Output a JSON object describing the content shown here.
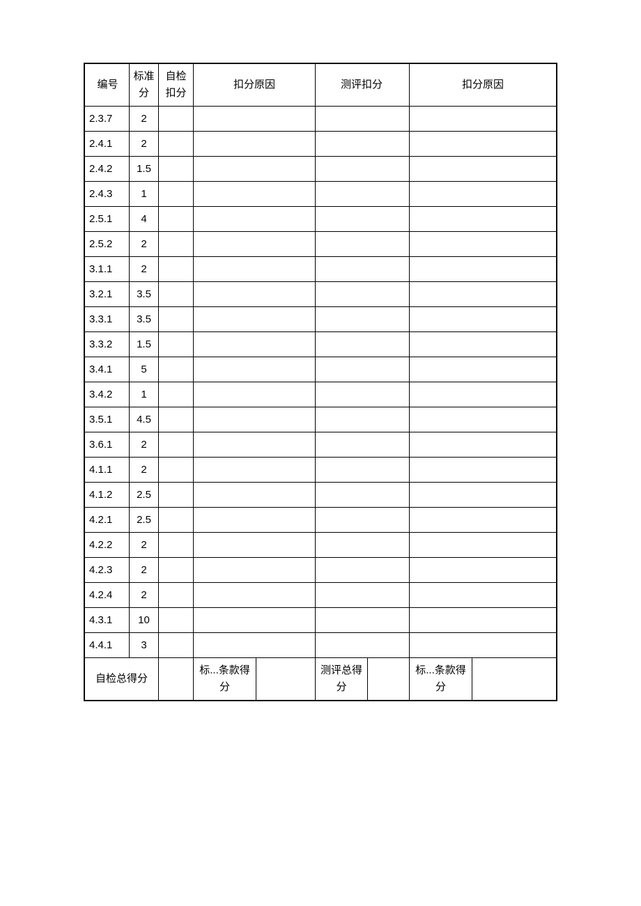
{
  "table": {
    "border_color": "#000000",
    "background_color": "#ffffff",
    "text_color": "#000000",
    "font_size": 15,
    "headers": {
      "col1": "编号",
      "col2": "标准分",
      "col3": "自检扣分",
      "col4": "扣分原因",
      "col5": "测评扣分",
      "col6": "扣分原因"
    },
    "column_widths_approx": [
      64,
      42,
      50,
      175,
      50,
      290
    ],
    "rows": [
      {
        "id": "2.3.7",
        "std": "2",
        "self_ded": "",
        "reason1": "",
        "eval_ded": "",
        "reason2": ""
      },
      {
        "id": "2.4.1",
        "std": "2",
        "self_ded": "",
        "reason1": "",
        "eval_ded": "",
        "reason2": ""
      },
      {
        "id": "2.4.2",
        "std": "1.5",
        "self_ded": "",
        "reason1": "",
        "eval_ded": "",
        "reason2": ""
      },
      {
        "id": "2.4.3",
        "std": "1",
        "self_ded": "",
        "reason1": "",
        "eval_ded": "",
        "reason2": ""
      },
      {
        "id": "2.5.1",
        "std": "4",
        "self_ded": "",
        "reason1": "",
        "eval_ded": "",
        "reason2": ""
      },
      {
        "id": "2.5.2",
        "std": "2",
        "self_ded": "",
        "reason1": "",
        "eval_ded": "",
        "reason2": ""
      },
      {
        "id": "3.1.1",
        "std": "2",
        "self_ded": "",
        "reason1": "",
        "eval_ded": "",
        "reason2": ""
      },
      {
        "id": "3.2.1",
        "std": "3.5",
        "self_ded": "",
        "reason1": "",
        "eval_ded": "",
        "reason2": ""
      },
      {
        "id": "3.3.1",
        "std": "3.5",
        "self_ded": "",
        "reason1": "",
        "eval_ded": "",
        "reason2": ""
      },
      {
        "id": "3.3.2",
        "std": "1.5",
        "self_ded": "",
        "reason1": "",
        "eval_ded": "",
        "reason2": ""
      },
      {
        "id": "3.4.1",
        "std": "5",
        "self_ded": "",
        "reason1": "",
        "eval_ded": "",
        "reason2": ""
      },
      {
        "id": "3.4.2",
        "std": "1",
        "self_ded": "",
        "reason1": "",
        "eval_ded": "",
        "reason2": ""
      },
      {
        "id": "3.5.1",
        "std": "4.5",
        "self_ded": "",
        "reason1": "",
        "eval_ded": "",
        "reason2": ""
      },
      {
        "id": "3.6.1",
        "std": "2",
        "self_ded": "",
        "reason1": "",
        "eval_ded": "",
        "reason2": ""
      },
      {
        "id": "4.1.1",
        "std": "2",
        "self_ded": "",
        "reason1": "",
        "eval_ded": "",
        "reason2": ""
      },
      {
        "id": "4.1.2",
        "std": "2.5",
        "self_ded": "",
        "reason1": "",
        "eval_ded": "",
        "reason2": ""
      },
      {
        "id": "4.2.1",
        "std": "2.5",
        "self_ded": "",
        "reason1": "",
        "eval_ded": "",
        "reason2": ""
      },
      {
        "id": "4.2.2",
        "std": "2",
        "self_ded": "",
        "reason1": "",
        "eval_ded": "",
        "reason2": ""
      },
      {
        "id": "4.2.3",
        "std": "2",
        "self_ded": "",
        "reason1": "",
        "eval_ded": "",
        "reason2": ""
      },
      {
        "id": "4.2.4",
        "std": "2",
        "self_ded": "",
        "reason1": "",
        "eval_ded": "",
        "reason2": ""
      },
      {
        "id": "4.3.1",
        "std": "10",
        "self_ded": "",
        "reason1": "",
        "eval_ded": "",
        "reason2": ""
      },
      {
        "id": "4.4.1",
        "std": "3",
        "self_ded": "",
        "reason1": "",
        "eval_ded": "",
        "reason2": ""
      }
    ],
    "footer": {
      "cell1": "自检总得分",
      "cell2": "",
      "cell3": "标...条款得分",
      "cell4": "",
      "cell5": "测评总得分",
      "cell6": "",
      "cell7": "标...条款得分",
      "cell8": ""
    }
  }
}
